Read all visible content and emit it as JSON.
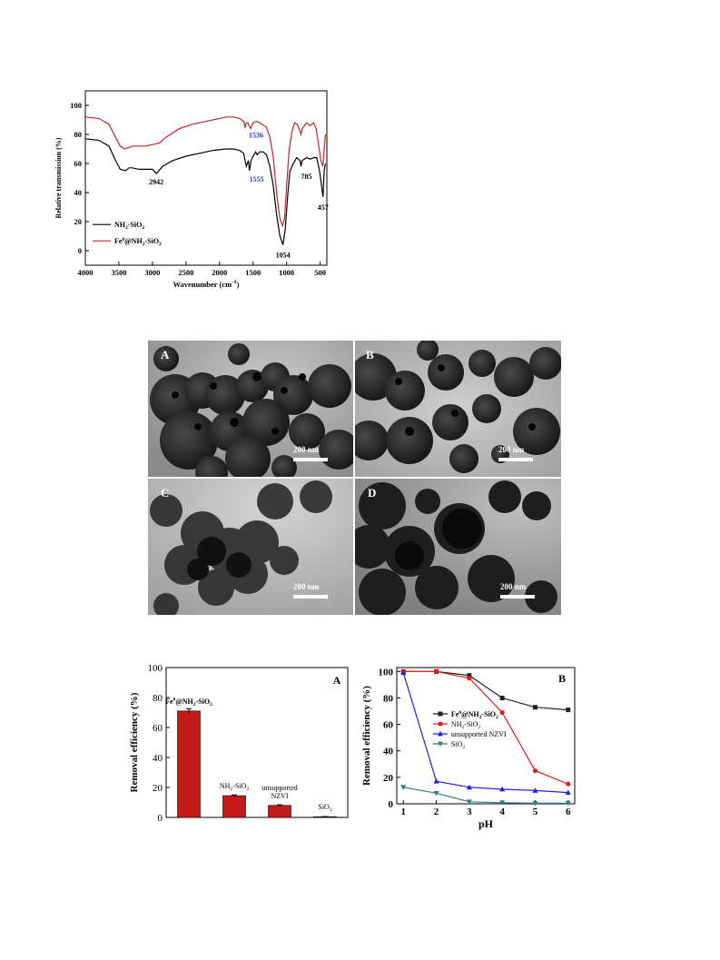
{
  "ftir": {
    "chart_data": {
      "type": "line",
      "xlabel": "Wavenumber (cm-1)",
      "ylabel": "Relative transmission (%)",
      "xlim": [
        4000,
        400
      ],
      "ylim": [
        -10,
        110
      ],
      "x_reversed": true,
      "xticks": [
        "4000",
        "3500",
        "3000",
        "2500",
        "2000",
        "1500",
        "1000",
        "500"
      ],
      "yticks": [
        "0",
        "20",
        "40",
        "60",
        "80",
        "100"
      ],
      "series": [
        {
          "name": "NH2-SiO2",
          "color": "#000000",
          "points": [
            [
              4000,
              77
            ],
            [
              3800,
              76
            ],
            [
              3650,
              72
            ],
            [
              3550,
              62
            ],
            [
              3480,
              56
            ],
            [
              3400,
              55
            ],
            [
              3350,
              57
            ],
            [
              3300,
              57
            ],
            [
              3200,
              56
            ],
            [
              3100,
              56
            ],
            [
              3000,
              56
            ],
            [
              2942,
              53
            ],
            [
              2850,
              58
            ],
            [
              2700,
              62
            ],
            [
              2500,
              65
            ],
            [
              2300,
              67
            ],
            [
              2100,
              69
            ],
            [
              1900,
              70
            ],
            [
              1800,
              70
            ],
            [
              1700,
              69
            ],
            [
              1640,
              67
            ],
            [
              1600,
              58
            ],
            [
              1570,
              62
            ],
            [
              1555,
              55
            ],
            [
              1530,
              62
            ],
            [
              1500,
              65
            ],
            [
              1460,
              68
            ],
            [
              1440,
              66
            ],
            [
              1400,
              68
            ],
            [
              1350,
              68
            ],
            [
              1300,
              66
            ],
            [
              1250,
              58
            ],
            [
              1200,
              45
            ],
            [
              1150,
              25
            ],
            [
              1100,
              10
            ],
            [
              1054,
              4
            ],
            [
              1020,
              15
            ],
            [
              980,
              40
            ],
            [
              950,
              55
            ],
            [
              900,
              60
            ],
            [
              850,
              64
            ],
            [
              800,
              62
            ],
            [
              785,
              58
            ],
            [
              770,
              62
            ],
            [
              700,
              64
            ],
            [
              650,
              63
            ],
            [
              600,
              64
            ],
            [
              550,
              64
            ],
            [
              510,
              55
            ],
            [
              480,
              45
            ],
            [
              457,
              37
            ],
            [
              440,
              55
            ],
            [
              420,
              60
            ]
          ]
        },
        {
          "name": "Fe0@NH2-SiO2",
          "color": "#c0262b",
          "points": [
            [
              4000,
              92
            ],
            [
              3800,
              91
            ],
            [
              3650,
              87
            ],
            [
              3550,
              78
            ],
            [
              3480,
              72
            ],
            [
              3420,
              70
            ],
            [
              3350,
              71
            ],
            [
              3300,
              72
            ],
            [
              3200,
              72
            ],
            [
              3100,
              72
            ],
            [
              3000,
              73
            ],
            [
              2900,
              74
            ],
            [
              2800,
              78
            ],
            [
              2600,
              84
            ],
            [
              2400,
              87
            ],
            [
              2200,
              89
            ],
            [
              2000,
              91
            ],
            [
              1900,
              92
            ],
            [
              1800,
              92
            ],
            [
              1700,
              91
            ],
            [
              1640,
              89
            ],
            [
              1620,
              85
            ],
            [
              1600,
              88
            ],
            [
              1580,
              88
            ],
            [
              1536,
              84
            ],
            [
              1500,
              88
            ],
            [
              1450,
              89
            ],
            [
              1400,
              88
            ],
            [
              1300,
              85
            ],
            [
              1250,
              78
            ],
            [
              1200,
              65
            ],
            [
              1150,
              40
            ],
            [
              1100,
              22
            ],
            [
              1060,
              17
            ],
            [
              1030,
              22
            ],
            [
              1000,
              45
            ],
            [
              960,
              70
            ],
            [
              920,
              82
            ],
            [
              880,
              88
            ],
            [
              840,
              87
            ],
            [
              800,
              82
            ],
            [
              785,
              80
            ],
            [
              770,
              84
            ],
            [
              700,
              88
            ],
            [
              650,
              86
            ],
            [
              600,
              88
            ],
            [
              560,
              84
            ],
            [
              520,
              72
            ],
            [
              490,
              62
            ],
            [
              460,
              58
            ],
            [
              440,
              70
            ],
            [
              420,
              80
            ]
          ]
        }
      ],
      "annotations": [
        {
          "text": "2942",
          "x": 2942,
          "y": 53
        },
        {
          "text": "1536",
          "x": 1536,
          "y": 84
        },
        {
          "text": "1555",
          "x": 1555,
          "y": 55
        },
        {
          "text": "785",
          "x": 785,
          "y": 58
        },
        {
          "text": "1054",
          "x": 1054,
          "y": 4
        },
        {
          "text": "457",
          "x": 457,
          "y": 37
        }
      ],
      "annotation_colors": {
        "1536": "#2a3cc8",
        "1555": "#2a3cc8"
      },
      "legend": {
        "placement": "bottom-left"
      }
    }
  },
  "tem": {
    "panels": [
      {
        "label": "A",
        "scale": "200 nm"
      },
      {
        "label": "B",
        "scale": "200 nm"
      },
      {
        "label": "C",
        "scale": "200 nm"
      },
      {
        "label": "D",
        "scale": "200 nm"
      }
    ]
  },
  "bar_chart": {
    "chart_data": {
      "type": "bar",
      "panel_label": "A",
      "ylabel": "Removal efficiency (%)",
      "ylim": [
        0,
        100
      ],
      "yticks": [
        "0",
        "20",
        "40",
        "60",
        "80",
        "100"
      ],
      "bar_color": "#c41a1a",
      "categories": [
        "Fe0@NH2-SiO2",
        "NH2-SiO2",
        "unsupported NZVI",
        "SiO2"
      ],
      "values": [
        71,
        14.5,
        8,
        0.5
      ],
      "errors": [
        1.5,
        0.5,
        0.4,
        0.1
      ]
    }
  },
  "ph_chart": {
    "chart_data": {
      "type": "line",
      "panel_label": "B",
      "xlabel": "pH",
      "ylabel": "Removal efficiency (%)",
      "xlim": [
        0.8,
        6.2
      ],
      "ylim": [
        0,
        103
      ],
      "xticks": [
        "1",
        "2",
        "3",
        "4",
        "5",
        "6"
      ],
      "yticks": [
        "0",
        "20",
        "40",
        "60",
        "80",
        "100"
      ],
      "x": [
        1,
        2,
        3,
        4,
        5,
        6
      ],
      "series": [
        {
          "name": "Fe0@NH2-SiO2",
          "color": "#222222",
          "marker": "square",
          "values": [
            100,
            100,
            97,
            80,
            73,
            71
          ]
        },
        {
          "name": "NH2-SiO2",
          "color": "#e02020",
          "marker": "circle",
          "values": [
            100,
            100,
            95,
            69,
            25,
            15
          ]
        },
        {
          "name": "unsupported NZVI",
          "color": "#2020e0",
          "marker": "triangle",
          "values": [
            99,
            17,
            12.5,
            11,
            10,
            8.5
          ]
        },
        {
          "name": "SiO2",
          "color": "#2f7f7f",
          "marker": "triangle-down",
          "values": [
            12.5,
            8,
            1.5,
            0.8,
            0.5,
            0.5
          ]
        }
      ],
      "legend": {
        "placement": "center-left"
      }
    }
  }
}
